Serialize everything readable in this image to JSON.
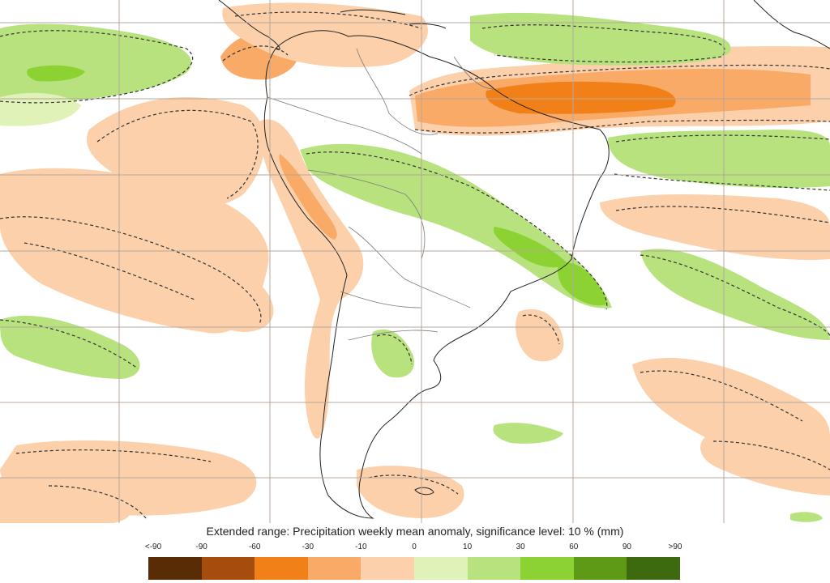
{
  "map": {
    "caption": "Extended range: Precipitation weekly mean anomaly, significance level: 10 % (mm)",
    "colors": {
      "ocean": "#ffffff",
      "land": "#ffffff",
      "grid": "#b5a79e",
      "coast": "#222222",
      "border": "#7a7a7a",
      "significance_contour": "#333333"
    }
  },
  "legend": {
    "tick_labels": [
      "<-90",
      "-90",
      "-60",
      "-30",
      "-10",
      "0",
      "10",
      "30",
      "60",
      "90",
      ">90"
    ],
    "colors": [
      "#5a2c05",
      "#a64d0d",
      "#f28019",
      "#f9aa66",
      "#fbd0aa",
      "#e0f2b8",
      "#b7e27e",
      "#8cd232",
      "#5e9a16",
      "#3e6a0f"
    ]
  }
}
